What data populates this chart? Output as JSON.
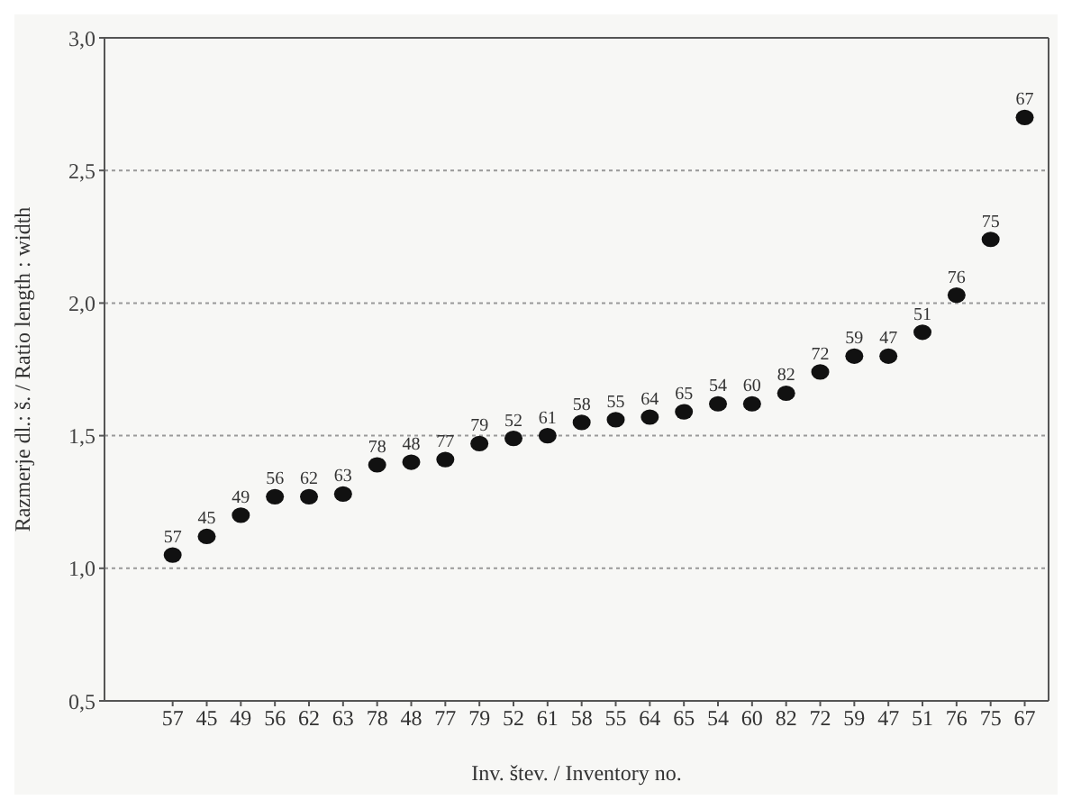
{
  "chart_data": {
    "type": "scatter",
    "xlabel": "Inv. štev. / Inventory no.",
    "ylabel": "Razmerje dl.: š. / Ratio length : width",
    "categories": [
      "57",
      "45",
      "49",
      "56",
      "62",
      "63",
      "78",
      "48",
      "77",
      "79",
      "52",
      "61",
      "58",
      "55",
      "64",
      "65",
      "54",
      "60",
      "82",
      "72",
      "59",
      "47",
      "51",
      "76",
      "75",
      "67"
    ],
    "series": [
      {
        "color": "#111111",
        "values": [
          1.05,
          1.12,
          1.2,
          1.27,
          1.27,
          1.28,
          1.39,
          1.4,
          1.41,
          1.47,
          1.49,
          1.5,
          1.55,
          1.56,
          1.57,
          1.59,
          1.62,
          1.62,
          1.66,
          1.74,
          1.8,
          1.8,
          1.89,
          2.03,
          2.24,
          2.7
        ]
      }
    ],
    "annotations": [
      {
        "text": "57",
        "x": "57",
        "y": 1.05
      },
      {
        "text": "45",
        "x": "45",
        "y": 1.12
      },
      {
        "text": "49",
        "x": "49",
        "y": 1.2
      },
      {
        "text": "56",
        "x": "56",
        "y": 1.27
      },
      {
        "text": "62",
        "x": "62",
        "y": 1.27
      },
      {
        "text": "63",
        "x": "63",
        "y": 1.28
      },
      {
        "text": "78",
        "x": "78",
        "y": 1.39
      },
      {
        "text": "48",
        "x": "48",
        "y": 1.4
      },
      {
        "text": "77",
        "x": "77",
        "y": 1.41
      },
      {
        "text": "79",
        "x": "79",
        "y": 1.47
      },
      {
        "text": "52",
        "x": "52",
        "y": 1.49
      },
      {
        "text": "61",
        "x": "61",
        "y": 1.5
      },
      {
        "text": "58",
        "x": "58",
        "y": 1.55
      },
      {
        "text": "55",
        "x": "55",
        "y": 1.56
      },
      {
        "text": "64",
        "x": "64",
        "y": 1.57
      },
      {
        "text": "65",
        "x": "65",
        "y": 1.59
      },
      {
        "text": "54",
        "x": "54",
        "y": 1.62
      },
      {
        "text": "60",
        "x": "60",
        "y": 1.62
      },
      {
        "text": "82",
        "x": "82",
        "y": 1.66
      },
      {
        "text": "72",
        "x": "72",
        "y": 1.74
      },
      {
        "text": "59",
        "x": "59",
        "y": 1.8
      },
      {
        "text": "47",
        "x": "47",
        "y": 1.8
      },
      {
        "text": "51",
        "x": "51",
        "y": 1.89
      },
      {
        "text": "76",
        "x": "76",
        "y": 2.03
      },
      {
        "text": "75",
        "x": "75",
        "y": 2.24
      },
      {
        "text": "67",
        "x": "67",
        "y": 2.7
      }
    ],
    "ylim": [
      0.5,
      3.0
    ],
    "yticks": [
      {
        "value": 0.5,
        "label": "0,5"
      },
      {
        "value": 1.0,
        "label": "1,0"
      },
      {
        "value": 1.5,
        "label": "1,5"
      },
      {
        "value": 2.0,
        "label": "2,0"
      },
      {
        "value": 2.5,
        "label": "2,5"
      },
      {
        "value": 3.0,
        "label": "3,0"
      }
    ],
    "grid": "y",
    "marker": "circle",
    "legend": false
  }
}
